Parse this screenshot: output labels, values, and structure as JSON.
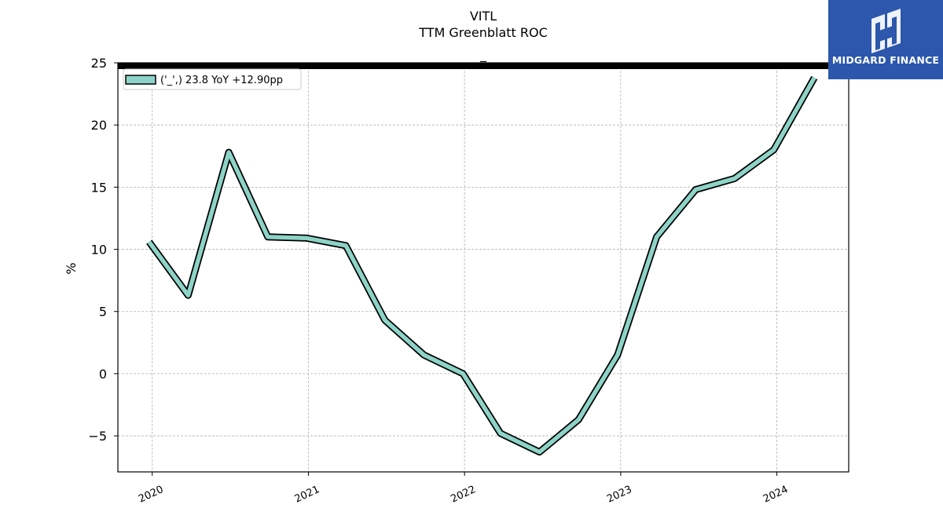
{
  "header": {
    "ticker": "VITL",
    "subtitle": "TTM Greenblatt ROC",
    "marker": "_"
  },
  "logo": {
    "name": "MIDGARD FINANCE",
    "bg_color": "#2c57ad"
  },
  "chart_data": {
    "type": "line",
    "title": "VITL",
    "subtitle": "TTM Greenblatt ROC",
    "xlabel": "",
    "ylabel": "%",
    "ylim": [
      -7.9,
      25
    ],
    "xlim": [
      2019.78,
      2024.46
    ],
    "yticks": [
      -5,
      0,
      5,
      10,
      15,
      20,
      25
    ],
    "xticks": [
      2020,
      2021,
      2022,
      2023,
      2024
    ],
    "ytick_labels": [
      "−5",
      "0",
      "5",
      "10",
      "15",
      "20",
      "25"
    ],
    "xtick_labels": [
      "2020",
      "2021",
      "2022",
      "2023",
      "2024"
    ],
    "grid": true,
    "legend_position": "top-left",
    "series": [
      {
        "name": "('_',) 23.8 YoY +12.90pp",
        "color": "#8dd3c7",
        "edge_color": "#000000",
        "x": [
          2019.98,
          2020.23,
          2020.49,
          2020.74,
          2020.99,
          2021.24,
          2021.49,
          2021.74,
          2021.99,
          2022.23,
          2022.48,
          2022.73,
          2022.98,
          2023.23,
          2023.48,
          2023.73,
          2023.98,
          2024.24
        ],
        "values": [
          10.6,
          6.3,
          17.8,
          11.0,
          10.9,
          10.3,
          4.3,
          1.5,
          0.0,
          -4.8,
          -6.3,
          -3.7,
          1.5,
          11.0,
          14.8,
          15.7,
          18.0,
          23.8
        ]
      }
    ]
  }
}
